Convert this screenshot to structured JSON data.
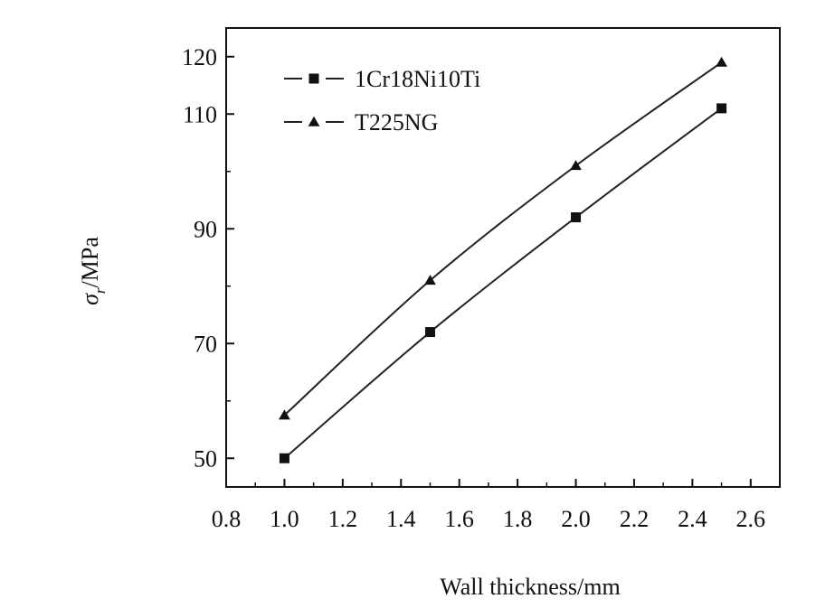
{
  "chart_data": {
    "type": "line",
    "title": "",
    "xlabel": "Wall thickness/mm",
    "ylabel": {
      "symbol": "σ",
      "subscript": "r",
      "unit": "/MPa"
    },
    "xlim": [
      0.8,
      2.7
    ],
    "ylim": [
      45,
      125
    ],
    "xticks": [
      0.8,
      1.0,
      1.2,
      1.4,
      1.6,
      1.8,
      2.0,
      2.2,
      2.4,
      2.6
    ],
    "xtick_labels": [
      "0.8",
      "1.0",
      "1.2",
      "1.4",
      "1.6",
      "1.8",
      "2.0",
      "2.2",
      "2.4",
      "2.6"
    ],
    "yticks": [
      50,
      70,
      90,
      110,
      120
    ],
    "ytick_labels": [
      "50",
      "70",
      "90",
      "110",
      "120"
    ],
    "grid": false,
    "legend_position": "top-left",
    "series": [
      {
        "name": "1Cr18Ni10Ti",
        "marker": "square",
        "x": [
          1.0,
          1.5,
          2.0,
          2.5
        ],
        "y": [
          50,
          72,
          92,
          111
        ]
      },
      {
        "name": "T225NG",
        "marker": "triangle",
        "x": [
          1.0,
          1.5,
          2.0,
          2.5
        ],
        "y": [
          57.5,
          81,
          101,
          119
        ]
      }
    ],
    "colors": {
      "line": "#222222",
      "marker": "#111111",
      "axis": "#111111"
    }
  }
}
